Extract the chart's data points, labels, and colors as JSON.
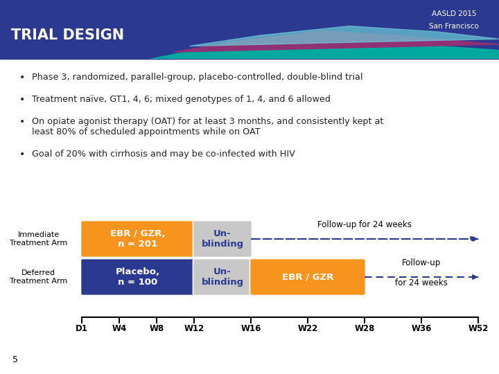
{
  "title": "TRIAL DESIGN",
  "subtitle_line1": "AASLD 2015",
  "subtitle_line2": "San Francisco",
  "header_bg": "#2B3990",
  "header_wave_teal": "#00A99D",
  "header_wave_purple": "#903075",
  "bg_color": "#FFFFFF",
  "bullet_points": [
    "Phase 3, randomized, parallel-group, placebo-controlled, double-blind trial",
    "Treatment naïve, GT1, 4, 6; mixed genotypes of 1, 4, and 6 allowed",
    "On opiate agonist therapy (OAT) for at least 3 months, and consistently kept at",
    "least 80% of scheduled appointments while on OAT",
    "Goal of 20% with cirrhosis and may be co-infected with HIV"
  ],
  "arm1_label": "Immediate\nTreatment Arm",
  "arm2_label": "Deferred\nTreatment Arm",
  "box_orange": "#F7941D",
  "box_blue": "#2B3990",
  "box_gray": "#C8C8C8",
  "arrow_color": "#2B3990",
  "followup_text_arm1": "Follow-up for 24 weeks",
  "followup_text_arm2_line1": "Follow-up",
  "followup_text_arm2_line2": "for 24 weeks",
  "timeline_labels": [
    "D1",
    "W4",
    "W8",
    "W12",
    "W16",
    "W22",
    "W28",
    "W36",
    "W52"
  ],
  "page_num": "5"
}
